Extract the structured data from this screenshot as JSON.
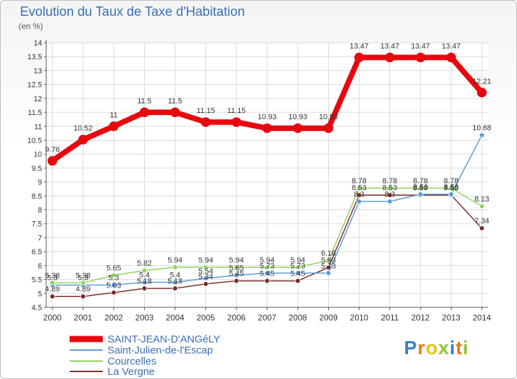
{
  "title": "Evolution du Taux de Taxe d'Habitation",
  "unit_label": "(en %)",
  "logo_text": "Proxiti",
  "chart_data": {
    "type": "line",
    "title": "Evolution du Taux de Taxe d'Habitation",
    "ylabel": "(en %)",
    "xlabel": "",
    "ylim": [
      4.5,
      14
    ],
    "yticks": [
      "4.5",
      "5",
      "5.5",
      "6",
      "6.5",
      "7",
      "7.5",
      "8",
      "8.5",
      "9",
      "9.5",
      "10",
      "10.5",
      "11",
      "11.5",
      "12",
      "12.5",
      "13",
      "13.5",
      "14"
    ],
    "categories": [
      "2000",
      "2001",
      "2002",
      "2003",
      "2004",
      "2005",
      "2006",
      "2007",
      "2008",
      "2009",
      "2010",
      "2011",
      "2012",
      "2013",
      "2014"
    ],
    "series": [
      {
        "name": "SAINT-JEAN-D'ANGéLY",
        "color": "#e8070f",
        "width": 8,
        "marker": 7,
        "values": [
          9.76,
          10.52,
          11,
          11.5,
          11.5,
          11.15,
          11.15,
          10.93,
          10.93,
          10.93,
          13.47,
          13.47,
          13.47,
          13.47,
          12.21
        ],
        "labels": [
          "9.76",
          "10.52",
          "11",
          "11.5",
          "11.5",
          "11.15",
          "11.15",
          "10.93",
          "10.93",
          "10.93",
          "13.47",
          "13.47",
          "13.47",
          "13.47",
          "12.21"
        ]
      },
      {
        "name": "Saint-Julien-de-l'Escap",
        "color": "#5b9bd5",
        "width": 1.5,
        "marker": 3.5,
        "values": [
          5.3,
          5.3,
          5.3,
          5.4,
          5.4,
          5.54,
          5.65,
          5.73,
          5.73,
          5.73,
          8.3,
          8.3,
          8.56,
          8.56,
          10.68
        ],
        "labels": [
          "5.3",
          "5.3",
          "5.3",
          "5.4",
          "5.4",
          "5.54",
          "5.65",
          "5.73",
          "5.73",
          "5.73",
          "8.3",
          "8.3",
          "8.56",
          "8.56",
          "10.68"
        ]
      },
      {
        "name": "Courcelles",
        "color": "#8fd45c",
        "width": 1.5,
        "marker": 3.5,
        "values": [
          5.38,
          5.38,
          5.65,
          5.82,
          5.94,
          5.94,
          5.94,
          5.94,
          5.94,
          6.18,
          8.78,
          8.78,
          8.78,
          8.78,
          8.13
        ],
        "labels": [
          "5.38",
          "5.38",
          "5.65",
          "5.82",
          "5.94",
          "5.94",
          "5.94",
          "5.94",
          "5.94",
          "6.18",
          "8.78",
          "8.78",
          "8.78",
          "8.78",
          "8.13"
        ]
      },
      {
        "name": "La Vergne",
        "color": "#7b2a2a",
        "width": 1.5,
        "marker": 3.5,
        "values": [
          4.89,
          4.89,
          5.03,
          5.18,
          5.18,
          5.34,
          5.45,
          5.45,
          5.45,
          5.93,
          8.53,
          8.53,
          8.53,
          8.53,
          7.34
        ],
        "labels": [
          "4.89",
          "4.89",
          "5.03",
          "5.18",
          "5.18",
          "5.34",
          "5.45",
          "5.45",
          "5.45",
          "5.93",
          "8.53",
          "8.53",
          "8.53",
          "8.53",
          "7.34"
        ]
      }
    ],
    "legend_position": "bottom-left",
    "grid": true
  },
  "legend": [
    {
      "name": "SAINT-JEAN-D'ANGéLY",
      "color": "#e8070f"
    },
    {
      "name": "Saint-Julien-de-l'Escap",
      "color": "#5b9bd5"
    },
    {
      "name": "Courcelles",
      "color": "#8fd45c"
    },
    {
      "name": "La Vergne",
      "color": "#7b2a2a"
    }
  ]
}
